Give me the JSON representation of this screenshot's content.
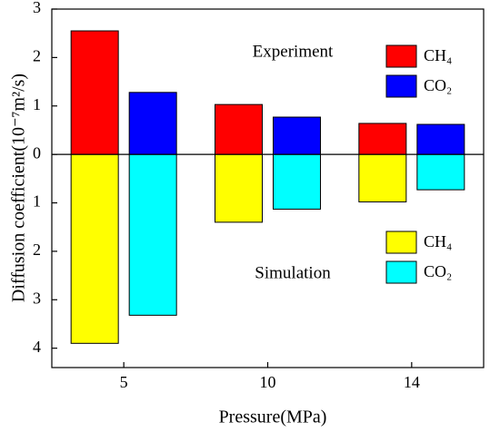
{
  "chart_data": {
    "type": "bar",
    "xlabel": "Pressure(MPa)",
    "ylabel": "Diffusion coefficient(10⁻⁷m²/s)",
    "categories": [
      "5",
      "10",
      "14"
    ],
    "groups": [
      {
        "title": "Experiment",
        "series": [
          {
            "name": "CH₄",
            "color": "#ff0000",
            "values": [
              2.55,
              1.03,
              0.64
            ]
          },
          {
            "name": "CO₂",
            "color": "#0000ff",
            "values": [
              1.28,
              0.77,
              0.62
            ]
          }
        ]
      },
      {
        "title": "Simulation",
        "series": [
          {
            "name": "CH₄",
            "color": "#ffff00",
            "values": [
              -3.9,
              -1.4,
              -0.98
            ]
          },
          {
            "name": "CO₂",
            "color": "#00ffff",
            "values": [
              -3.32,
              -1.13,
              -0.73
            ]
          }
        ]
      }
    ],
    "ylim": [
      -4.4,
      3
    ],
    "yticks": [
      {
        "value": -4,
        "label": "4"
      },
      {
        "value": -3,
        "label": "3"
      },
      {
        "value": -2,
        "label": "2"
      },
      {
        "value": -1,
        "label": "1"
      },
      0,
      1,
      2,
      3
    ]
  }
}
